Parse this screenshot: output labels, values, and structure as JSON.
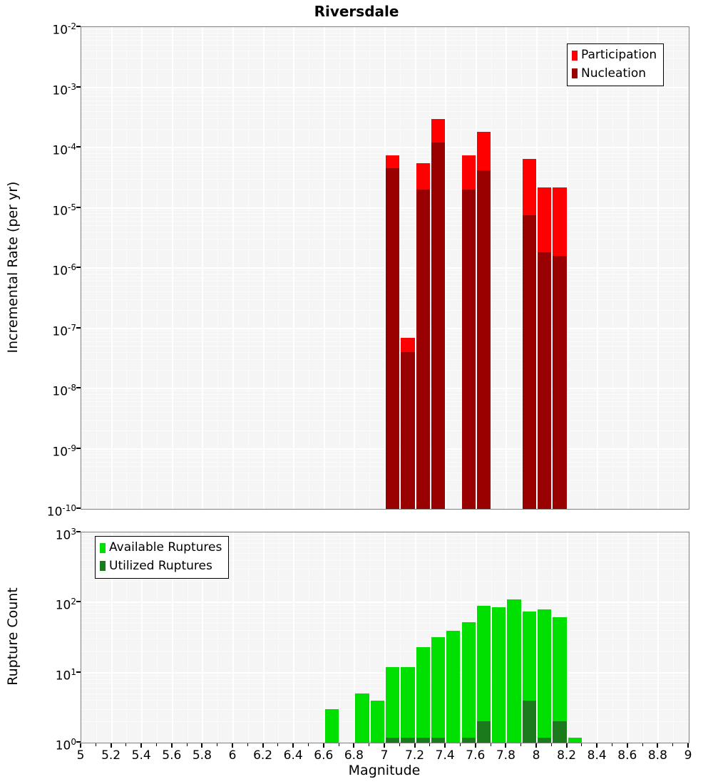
{
  "title": "Riversdale",
  "colors": {
    "participation": "#FF0000",
    "nucleation": "#990000",
    "available_ruptures": "#00E000",
    "utilized_ruptures": "#1B7A1B",
    "plot_background": "#F5F5F5",
    "gridline": "#FFFFFF",
    "axis_line": "#808080",
    "text": "#000000"
  },
  "top_chart": {
    "ylabel": "Incremental Rate (per yr)",
    "legend_items": [
      "Participation",
      "Nucleation"
    ],
    "y_tick_exponents": [
      -2,
      -3,
      -4,
      -5,
      -6,
      -7,
      -8,
      -9,
      -10
    ]
  },
  "bottom_chart": {
    "ylabel": "Rupture Count",
    "legend_items": [
      "Available Ruptures",
      "Utilized Ruptures"
    ],
    "y_tick_exponents": [
      3,
      2,
      1,
      0
    ]
  },
  "x_axis": {
    "label": "Magnitude",
    "range": [
      5,
      9
    ],
    "tick_labels": [
      "5",
      "5.2",
      "5.4",
      "5.6",
      "5.8",
      "6",
      "6.2",
      "6.4",
      "6.6",
      "6.8",
      "7",
      "7.2",
      "7.4",
      "7.6",
      "7.8",
      "8",
      "8.2",
      "8.4",
      "8.6",
      "8.8",
      "9"
    ]
  },
  "chart_data": [
    {
      "type": "bar",
      "title": "Riversdale",
      "xlabel": "Magnitude",
      "ylabel": "Incremental Rate (per yr)",
      "x_range": [
        5,
        9
      ],
      "bin_width": 0.1,
      "y_scale": "log",
      "ylim": [
        1e-10,
        0.01
      ],
      "grid": true,
      "legend_position": "top-right",
      "series": [
        {
          "name": "Participation",
          "color": "#FF0000",
          "x": [
            7.0,
            7.1,
            7.2,
            7.3,
            7.5,
            7.6,
            7.9,
            8.0,
            8.1
          ],
          "values": [
            7.5e-05,
            7e-08,
            5.5e-05,
            0.0003,
            7.5e-05,
            0.00018,
            6.5e-05,
            2.2e-05,
            2.2e-05
          ]
        },
        {
          "name": "Nucleation",
          "color": "#990000",
          "x": [
            7.0,
            7.1,
            7.2,
            7.3,
            7.5,
            7.6,
            7.9,
            8.0,
            8.1
          ],
          "values": [
            4.5e-05,
            4e-08,
            2e-05,
            0.00012,
            2e-05,
            4.2e-05,
            7.5e-06,
            1.8e-06,
            1.6e-06
          ]
        }
      ]
    },
    {
      "type": "bar",
      "xlabel": "Magnitude",
      "ylabel": "Rupture Count",
      "x_range": [
        5,
        9
      ],
      "bin_width": 0.1,
      "y_scale": "log",
      "ylim": [
        1,
        1000
      ],
      "grid": true,
      "legend_position": "top-left",
      "series": [
        {
          "name": "Available Ruptures",
          "color": "#00E000",
          "x": [
            6.6,
            6.8,
            6.9,
            7.0,
            7.1,
            7.2,
            7.3,
            7.4,
            7.5,
            7.6,
            7.7,
            7.8,
            7.9,
            8.0,
            8.1,
            8.2
          ],
          "values": [
            3,
            5,
            4,
            12,
            12,
            23,
            32,
            40,
            52,
            90,
            86,
            110,
            75,
            80,
            62,
            1
          ]
        },
        {
          "name": "Utilized Ruptures",
          "color": "#1B7A1B",
          "x": [
            7.0,
            7.1,
            7.2,
            7.3,
            7.5,
            7.6,
            7.9,
            8.0,
            8.1
          ],
          "values": [
            1,
            1,
            1,
            1,
            1,
            2,
            4,
            1,
            2
          ]
        }
      ]
    }
  ]
}
